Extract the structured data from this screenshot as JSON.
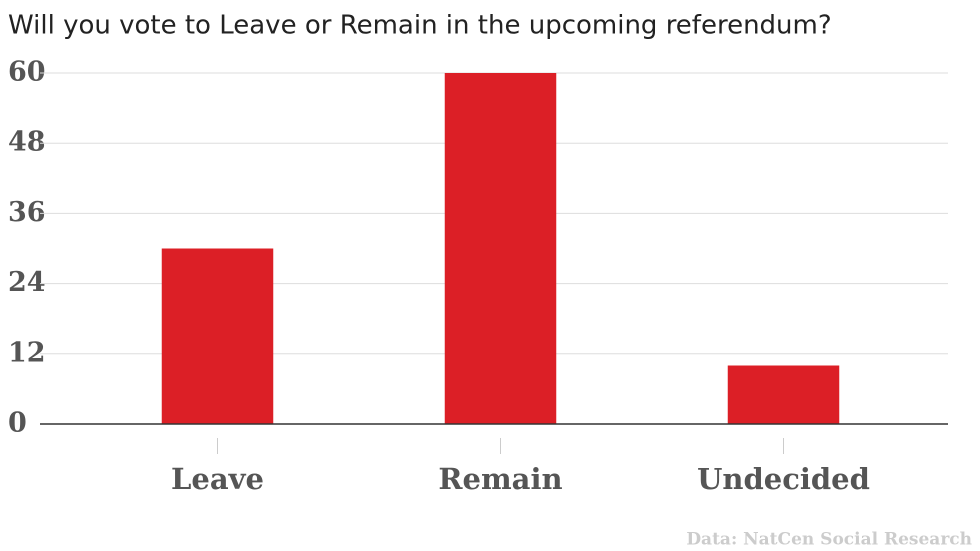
{
  "chart_data": {
    "type": "bar",
    "title": "Will you vote to Leave or Remain in the upcoming referendum?",
    "categories": [
      "Leave",
      "Remain",
      "Undecided"
    ],
    "values": [
      30,
      60,
      10
    ],
    "color": "#dc1f26",
    "ylim": [
      0,
      60
    ],
    "yticks": [
      0,
      12,
      24,
      36,
      48,
      60
    ],
    "grid": true,
    "source": "Data: NatCen Social Research"
  }
}
